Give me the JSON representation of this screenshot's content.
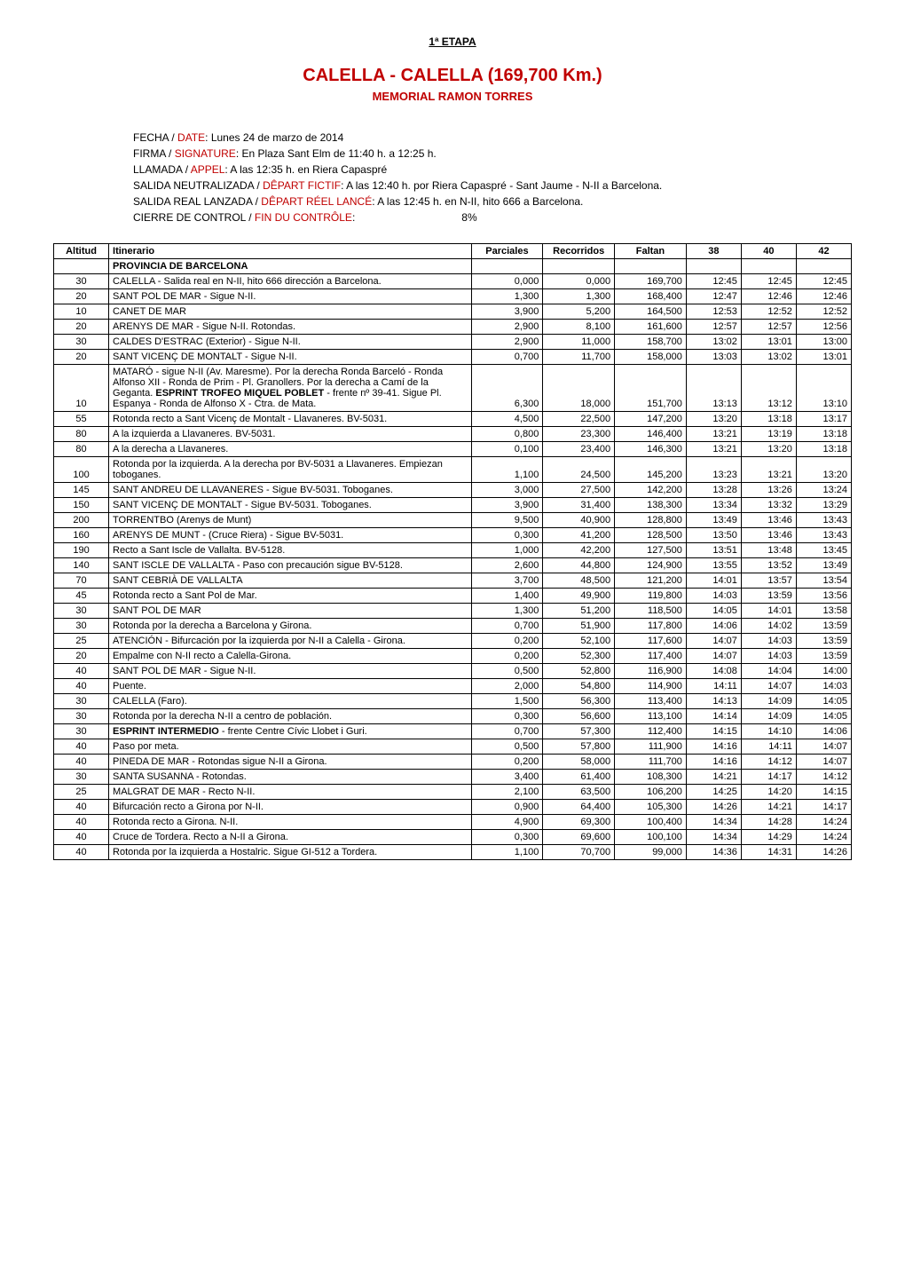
{
  "header": {
    "stage": "1ª ETAPA",
    "title": "CALELLA - CALELLA  (169,700 Km.)",
    "subtitle": "MEMORIAL RAMON TORRES"
  },
  "info": [
    {
      "es": "FECHA",
      "fr": "DATE",
      "text": ": Lunes 24 de marzo de 2014"
    },
    {
      "es": "FIRMA",
      "fr": "SIGNATURE",
      "text": ": En Plaza Sant Elm de 11:40 h. a 12:25 h."
    },
    {
      "es": "LLAMADA",
      "fr": "APPEL",
      "text": ": A las 12:35 h. en Riera Capaspré"
    },
    {
      "es": "SALIDA NEUTRALIZADA",
      "fr": "DÊPART FICTIF",
      "text": ": A las 12:40 h. por Riera Capaspré - Sant Jaume - N-II a Barcelona."
    },
    {
      "es": "SALIDA REAL LANZADA",
      "fr": "DÊPART RÉEL LANCÉ",
      "text": ": A las 12:45 h. en N-II, hito 666 a Barcelona."
    },
    {
      "es": "CIERRE DE CONTROL",
      "fr": "FIN DU CONTRÔLE",
      "text": ":",
      "extra": "8%"
    }
  ],
  "columns": [
    "Altitud",
    "Itinerario",
    "Parciales",
    "Recorridos",
    "Faltan",
    "38",
    "40",
    "42"
  ],
  "section_header": "PROVINCIA DE BARCELONA",
  "rows": [
    {
      "alt": "30",
      "itin": "CALELLA - Salida real en N-II, hito 666 dirección a Barcelona.",
      "par": "0,000",
      "rec": "0,000",
      "fal": "169,700",
      "t38": "12:45",
      "t40": "12:45",
      "t42": "12:45"
    },
    {
      "alt": "20",
      "itin": "SANT POL DE MAR - Sigue N-II.",
      "par": "1,300",
      "rec": "1,300",
      "fal": "168,400",
      "t38": "12:47",
      "t40": "12:46",
      "t42": "12:46"
    },
    {
      "alt": "10",
      "itin": "CANET DE MAR",
      "par": "3,900",
      "rec": "5,200",
      "fal": "164,500",
      "t38": "12:53",
      "t40": "12:52",
      "t42": "12:52"
    },
    {
      "alt": "20",
      "itin": "ARENYS DE MAR - Sigue N-II. Rotondas.",
      "par": "2,900",
      "rec": "8,100",
      "fal": "161,600",
      "t38": "12:57",
      "t40": "12:57",
      "t42": "12:56"
    },
    {
      "alt": "30",
      "itin": "CALDES D'ESTRAC (Exterior) - Sigue N-II.",
      "par": "2,900",
      "rec": "11,000",
      "fal": "158,700",
      "t38": "13:02",
      "t40": "13:01",
      "t42": "13:00"
    },
    {
      "alt": "20",
      "itin": "SANT VICENÇ DE MONTALT - Sigue N-II.",
      "par": "0,700",
      "rec": "11,700",
      "fal": "158,000",
      "t38": "13:03",
      "t40": "13:02",
      "t42": "13:01"
    },
    {
      "alt": "10",
      "itin_html": "MATARÓ - sigue N-II (Av. Maresme). Por la derecha Ronda Barceló - Ronda Alfonso XII - Ronda de Prim - Pl. Granollers. Por la derecha a Camí de la Geganta. <b>ESPRINT TROFEO MIQUEL POBLET</b> - frente nº 39-41. Sigue Pl. Espanya - Ronda de Alfonso X - Ctra. de Mata.",
      "par": "6,300",
      "rec": "18,000",
      "fal": "151,700",
      "t38": "13:13",
      "t40": "13:12",
      "t42": "13:10"
    },
    {
      "alt": "55",
      "itin": "Rotonda recto a Sant Vicenç de Montalt - Llavaneres. BV-5031.",
      "par": "4,500",
      "rec": "22,500",
      "fal": "147,200",
      "t38": "13:20",
      "t40": "13:18",
      "t42": "13:17"
    },
    {
      "alt": "80",
      "itin": "A la izquierda a Llavaneres. BV-5031.",
      "par": "0,800",
      "rec": "23,300",
      "fal": "146,400",
      "t38": "13:21",
      "t40": "13:19",
      "t42": "13:18"
    },
    {
      "alt": "80",
      "itin": "A la derecha a Llavaneres.",
      "par": "0,100",
      "rec": "23,400",
      "fal": "146,300",
      "t38": "13:21",
      "t40": "13:20",
      "t42": "13:18"
    },
    {
      "alt": "100",
      "itin": "Rotonda por la izquierda. A la derecha por BV-5031 a Llavaneres. Empiezan toboganes.",
      "par": "1,100",
      "rec": "24,500",
      "fal": "145,200",
      "t38": "13:23",
      "t40": "13:21",
      "t42": "13:20"
    },
    {
      "alt": "145",
      "itin": "SANT ANDREU DE LLAVANERES - Sigue BV-5031. Toboganes.",
      "par": "3,000",
      "rec": "27,500",
      "fal": "142,200",
      "t38": "13:28",
      "t40": "13:26",
      "t42": "13:24"
    },
    {
      "alt": "150",
      "itin": "SANT VICENÇ DE MONTALT - Sigue BV-5031. Toboganes.",
      "par": "3,900",
      "rec": "31,400",
      "fal": "138,300",
      "t38": "13:34",
      "t40": "13:32",
      "t42": "13:29"
    },
    {
      "alt": "200",
      "itin": "TORRENTBO (Arenys de Munt)",
      "par": "9,500",
      "rec": "40,900",
      "fal": "128,800",
      "t38": "13:49",
      "t40": "13:46",
      "t42": "13:43"
    },
    {
      "alt": "160",
      "itin": "ARENYS DE MUNT - (Cruce Riera) - Sigue BV-5031.",
      "par": "0,300",
      "rec": "41,200",
      "fal": "128,500",
      "t38": "13:50",
      "t40": "13:46",
      "t42": "13:43"
    },
    {
      "alt": "190",
      "itin": "Recto a Sant Iscle de Vallalta. BV-5128.",
      "par": "1,000",
      "rec": "42,200",
      "fal": "127,500",
      "t38": "13:51",
      "t40": "13:48",
      "t42": "13:45"
    },
    {
      "alt": "140",
      "itin": "SANT ISCLE DE VALLALTA - Paso con precaución sigue BV-5128.",
      "par": "2,600",
      "rec": "44,800",
      "fal": "124,900",
      "t38": "13:55",
      "t40": "13:52",
      "t42": "13:49"
    },
    {
      "alt": "70",
      "itin": "SANT CEBRIÀ DE VALLALTA",
      "par": "3,700",
      "rec": "48,500",
      "fal": "121,200",
      "t38": "14:01",
      "t40": "13:57",
      "t42": "13:54"
    },
    {
      "alt": "45",
      "itin": "Rotonda recto a Sant Pol de Mar.",
      "par": "1,400",
      "rec": "49,900",
      "fal": "119,800",
      "t38": "14:03",
      "t40": "13:59",
      "t42": "13:56"
    },
    {
      "alt": "30",
      "itin": "SANT POL DE MAR",
      "par": "1,300",
      "rec": "51,200",
      "fal": "118,500",
      "t38": "14:05",
      "t40": "14:01",
      "t42": "13:58"
    },
    {
      "alt": "30",
      "itin": "Rotonda por la derecha a Barcelona y Girona.",
      "par": "0,700",
      "rec": "51,900",
      "fal": "117,800",
      "t38": "14:06",
      "t40": "14:02",
      "t42": "13:59"
    },
    {
      "alt": "25",
      "itin": "ATENCIÓN - Bifurcación por la izquierda por N-II a Calella - Girona.",
      "par": "0,200",
      "rec": "52,100",
      "fal": "117,600",
      "t38": "14:07",
      "t40": "14:03",
      "t42": "13:59"
    },
    {
      "alt": "20",
      "itin": "Empalme con N-II recto a Calella-Girona.",
      "par": "0,200",
      "rec": "52,300",
      "fal": "117,400",
      "t38": "14:07",
      "t40": "14:03",
      "t42": "13:59"
    },
    {
      "alt": "40",
      "itin": "SANT POL DE MAR - Sigue N-II.",
      "par": "0,500",
      "rec": "52,800",
      "fal": "116,900",
      "t38": "14:08",
      "t40": "14:04",
      "t42": "14:00"
    },
    {
      "alt": "40",
      "itin": "Puente.",
      "par": "2,000",
      "rec": "54,800",
      "fal": "114,900",
      "t38": "14:11",
      "t40": "14:07",
      "t42": "14:03"
    },
    {
      "alt": "30",
      "itin": "CALELLA (Faro).",
      "par": "1,500",
      "rec": "56,300",
      "fal": "113,400",
      "t38": "14:13",
      "t40": "14:09",
      "t42": "14:05"
    },
    {
      "alt": "30",
      "itin": "Rotonda por la derecha N-II a centro de población.",
      "par": "0,300",
      "rec": "56,600",
      "fal": "113,100",
      "t38": "14:14",
      "t40": "14:09",
      "t42": "14:05"
    },
    {
      "alt": "30",
      "itin_html": "<b>ESPRINT INTERMEDIO</b> - frente Centre Cívic Llobet i Guri.",
      "par": "0,700",
      "rec": "57,300",
      "fal": "112,400",
      "t38": "14:15",
      "t40": "14:10",
      "t42": "14:06"
    },
    {
      "alt": "40",
      "itin": "Paso por meta.",
      "par": "0,500",
      "rec": "57,800",
      "fal": "111,900",
      "t38": "14:16",
      "t40": "14:11",
      "t42": "14:07"
    },
    {
      "alt": "40",
      "itin": "PINEDA DE MAR - Rotondas sigue N-II a Girona.",
      "par": "0,200",
      "rec": "58,000",
      "fal": "111,700",
      "t38": "14:16",
      "t40": "14:12",
      "t42": "14:07"
    },
    {
      "alt": "30",
      "itin": "SANTA SUSANNA - Rotondas.",
      "par": "3,400",
      "rec": "61,400",
      "fal": "108,300",
      "t38": "14:21",
      "t40": "14:17",
      "t42": "14:12"
    },
    {
      "alt": "25",
      "itin": "MALGRAT DE MAR - Recto N-II.",
      "par": "2,100",
      "rec": "63,500",
      "fal": "106,200",
      "t38": "14:25",
      "t40": "14:20",
      "t42": "14:15"
    },
    {
      "alt": "40",
      "itin": "Bifurcación recto a Girona por N-II.",
      "par": "0,900",
      "rec": "64,400",
      "fal": "105,300",
      "t38": "14:26",
      "t40": "14:21",
      "t42": "14:17"
    },
    {
      "alt": "40",
      "itin": "Rotonda recto a Girona. N-II.",
      "par": "4,900",
      "rec": "69,300",
      "fal": "100,400",
      "t38": "14:34",
      "t40": "14:28",
      "t42": "14:24"
    },
    {
      "alt": "40",
      "itin": "Cruce de Tordera. Recto a N-II a Girona.",
      "par": "0,300",
      "rec": "69,600",
      "fal": "100,100",
      "t38": "14:34",
      "t40": "14:29",
      "t42": "14:24"
    },
    {
      "alt": "40",
      "itin": "Rotonda por la izquierda a Hostalric. Sigue GI-512 a Tordera.",
      "par": "1,100",
      "rec": "70,700",
      "fal": "99,000",
      "t38": "14:36",
      "t40": "14:31",
      "t42": "14:26"
    }
  ]
}
